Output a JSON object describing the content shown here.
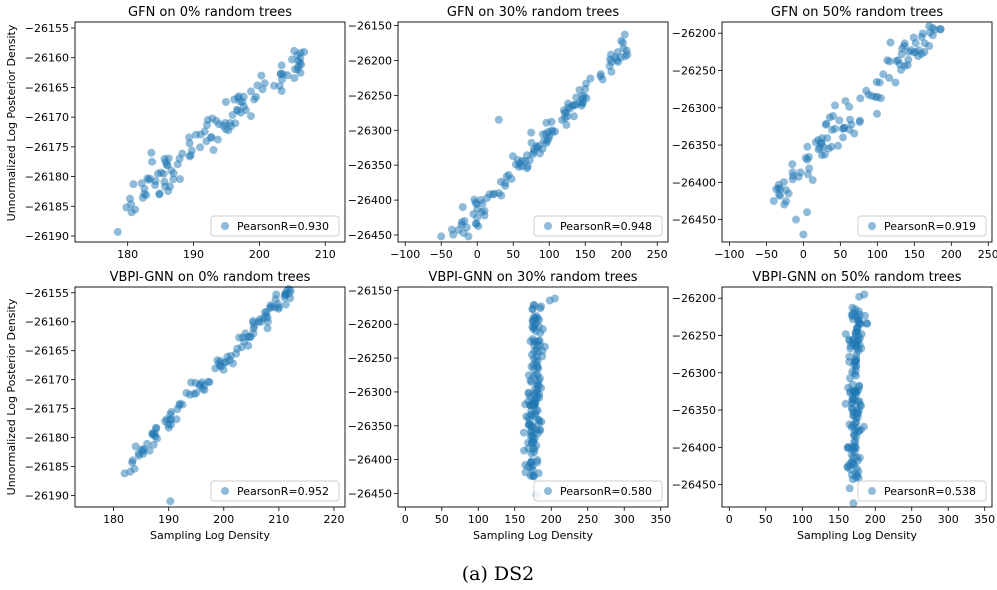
{
  "figure": {
    "caption": "(a) DS2",
    "xlabel": "Sampling Log Density",
    "ylabel": "Unnormalized Log Posterior Density",
    "point_color": "#1f77b4"
  },
  "chart_data": [
    {
      "type": "scatter",
      "title": "GFN on 0% random trees",
      "xlim": [
        172,
        213
      ],
      "ylim": [
        -26191,
        -26154
      ],
      "xticks": [
        180,
        190,
        200,
        210
      ],
      "yticks": [
        -26190,
        -26185,
        -26180,
        -26175,
        -26170,
        -26165,
        -26160,
        -26155
      ],
      "legend": "PearsonR=0.930",
      "legend_position": "lower right",
      "pearson_r": 0.93,
      "n_points": 110,
      "series": [
        {
          "fit": {
            "slope": 0.92,
            "intercept": -26350.0,
            "noise": 2.0
          },
          "points": [
            [
              178.5,
              -26189.3
            ],
            [
              179.8,
              -26185.2
            ],
            [
              180.6,
              -26186.0
            ],
            [
              183.0,
              -26180.3
            ],
            [
              183.6,
              -26176.0
            ],
            [
              184.8,
              -26183.0
            ],
            [
              185.6,
              -26177.0
            ]
          ]
        }
      ]
    },
    {
      "type": "scatter",
      "title": "GFN on 30% random trees",
      "xlim": [
        -110,
        265
      ],
      "ylim": [
        -26460,
        -26145
      ],
      "xticks": [
        -100,
        -50,
        0,
        50,
        100,
        150,
        200,
        250
      ],
      "yticks": [
        -26450,
        -26400,
        -26350,
        -26300,
        -26250,
        -26200,
        -26150
      ],
      "legend": "PearsonR=0.948",
      "legend_position": "lower right",
      "pearson_r": 0.948,
      "n_points": 120,
      "series": [
        {
          "fit": {
            "slope": 1.15,
            "intercept": -26418.0,
            "noise": 14.0
          },
          "points": [
            [
              -50,
              -26452
            ],
            [
              -20,
              -26410
            ],
            [
              0,
              -26425
            ],
            [
              30,
              -26285
            ],
            [
              205,
              -26163
            ],
            [
              200,
              -26172
            ]
          ]
        }
      ]
    },
    {
      "type": "scatter",
      "title": "GFN on 50% random trees",
      "xlim": [
        -110,
        255
      ],
      "ylim": [
        -26480,
        -26185
      ],
      "xticks": [
        -100,
        -50,
        0,
        50,
        100,
        150,
        200,
        250
      ],
      "yticks": [
        -26450,
        -26400,
        -26350,
        -26300,
        -26250,
        -26200
      ],
      "legend": "PearsonR=0.919",
      "legend_position": "lower right",
      "pearson_r": 0.919,
      "n_points": 110,
      "series": [
        {
          "fit": {
            "slope": 1.05,
            "intercept": -26378.0,
            "noise": 19.0
          },
          "points": [
            [
              -40,
              -26425
            ],
            [
              -10,
              -26450
            ],
            [
              0,
              -26470
            ],
            [
              5,
              -26440
            ],
            [
              -20,
              -26415
            ],
            [
              178,
              -26195
            ],
            [
              185,
              -26195
            ],
            [
              160,
              -26205
            ]
          ]
        }
      ]
    },
    {
      "type": "scatter",
      "title": "VBPI-GNN on 0% random trees",
      "xlim": [
        173,
        222
      ],
      "ylim": [
        -26192,
        -26154
      ],
      "xticks": [
        180,
        190,
        200,
        210,
        220
      ],
      "yticks": [
        -26190,
        -26185,
        -26180,
        -26175,
        -26170,
        -26165,
        -26160,
        -26155
      ],
      "legend": "PearsonR=0.952",
      "legend_position": "lower right",
      "pearson_r": 0.952,
      "n_points": 110,
      "series": [
        {
          "fit": {
            "slope": 1.0,
            "intercept": -26367.0,
            "noise": 1.2
          },
          "points": [
            [
              182.0,
              -26186.2
            ],
            [
              183.8,
              -26185.4
            ],
            [
              190.3,
              -26191.0
            ],
            [
              211.2,
              -26155.3
            ],
            [
              210.0,
              -26157.5
            ]
          ]
        }
      ]
    },
    {
      "type": "scatter",
      "title": "VBPI-GNN on 30% random trees",
      "xlabel": "Sampling Log Density",
      "xlim": [
        -10,
        360
      ],
      "ylim": [
        -26470,
        -26145
      ],
      "xticks": [
        0,
        50,
        100,
        150,
        200,
        250,
        300,
        350
      ],
      "yticks": [
        -26450,
        -26400,
        -26350,
        -26300,
        -26250,
        -26200,
        -26150
      ],
      "legend": "PearsonR=0.580",
      "legend_position": "lower right",
      "pearson_r": 0.58,
      "n_points": 150,
      "series": [
        {
          "fit": {
            "slope": 0.0,
            "intercept": -26290.0,
            "noise": 0.0
          },
          "points": [
            [
              205,
              -26162
            ],
            [
              198,
              -26165
            ],
            [
              176,
              -26425
            ],
            [
              172,
              -26405
            ],
            [
              180,
              -26452
            ]
          ]
        }
      ]
    },
    {
      "type": "scatter",
      "title": "VBPI-GNN on 50% random trees",
      "xlabel": "Sampling Log Density",
      "xlim": [
        -10,
        360
      ],
      "ylim": [
        -26480,
        -26185
      ],
      "xticks": [
        0,
        50,
        100,
        150,
        200,
        250,
        300,
        350
      ],
      "yticks": [
        -26450,
        -26400,
        -26350,
        -26300,
        -26250,
        -26200
      ],
      "legend": "PearsonR=0.538",
      "legend_position": "lower right",
      "pearson_r": 0.538,
      "n_points": 150,
      "series": [
        {
          "fit": {
            "slope": 0.0,
            "intercept": -26300.0,
            "noise": 0.0
          },
          "points": [
            [
              185,
              -26195
            ],
            [
              178,
              -26198
            ],
            [
              168,
              -26437
            ],
            [
              165,
              -26455
            ],
            [
              170,
              -26475
            ]
          ]
        }
      ]
    }
  ]
}
